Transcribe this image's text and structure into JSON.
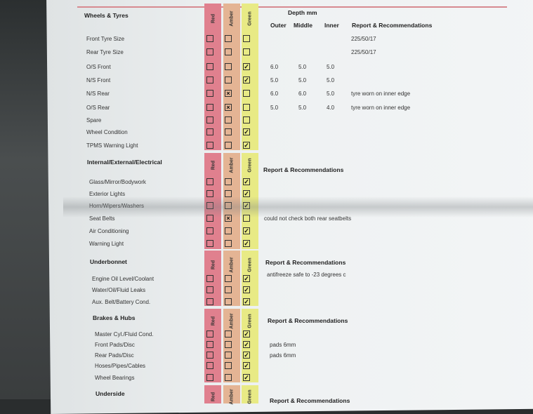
{
  "columns": {
    "red": "Red",
    "amber": "Amber",
    "green": "Green"
  },
  "depth_header": "Depth mm",
  "depth_columns": [
    "Outer",
    "Middle",
    "Inner"
  ],
  "report_header": "Report & Recommendations",
  "colors": {
    "red": "#e0808e",
    "amber": "#e4b494",
    "green": "#e8ea85",
    "rule": "#d78a90"
  },
  "sections": [
    {
      "title": "Wheels & Tyres",
      "items": [
        {
          "label": "Front Tyre Size",
          "status": "none",
          "report": "225/50/17"
        },
        {
          "label": "Rear Tyre Size",
          "status": "none",
          "report": "225/50/17"
        },
        {
          "label": "O/S Front",
          "status": "green",
          "mark": "check",
          "outer": "6.0",
          "middle": "5.0",
          "inner": "5.0"
        },
        {
          "label": "N/S Front",
          "status": "green",
          "mark": "check",
          "outer": "5.0",
          "middle": "5.0",
          "inner": "5.0"
        },
        {
          "label": "N/S Rear",
          "status": "amber",
          "mark": "cross",
          "outer": "6.0",
          "middle": "6.0",
          "inner": "5.0",
          "report": "tyre worn on inner edge"
        },
        {
          "label": "O/S Rear",
          "status": "amber",
          "mark": "cross",
          "outer": "5.0",
          "middle": "5.0",
          "inner": "4.0",
          "report": "tyre worn on inner edge"
        },
        {
          "label": "Spare",
          "status": "none"
        },
        {
          "label": "Wheel Condition",
          "status": "green",
          "mark": "check"
        },
        {
          "label": "TPMS Warning Light",
          "status": "green",
          "mark": "check"
        }
      ]
    },
    {
      "title": "Internal/External/Electrical",
      "items": [
        {
          "label": "Glass/Mirror/Bodywork",
          "status": "green",
          "mark": "check"
        },
        {
          "label": "Exterior Lights",
          "status": "green",
          "mark": "check"
        },
        {
          "label": "Horn/Wipers/Washers",
          "status": "green",
          "mark": "check"
        },
        {
          "label": "Seat Belts",
          "status": "amber",
          "mark": "cross",
          "report": "could not check both rear seatbelts"
        },
        {
          "label": "Air Conditioning",
          "status": "green",
          "mark": "check"
        },
        {
          "label": "Warning Light",
          "status": "green",
          "mark": "check"
        }
      ]
    },
    {
      "title": "Underbonnet",
      "items": [
        {
          "label": "Engine Oil Level/Coolant",
          "status": "green",
          "mark": "check",
          "report": "antifreeze safe to -23 degrees c"
        },
        {
          "label": "Water/Oil/Fluid Leaks",
          "status": "green",
          "mark": "check"
        },
        {
          "label": "Aux. Belt/Battery Cond.",
          "status": "green",
          "mark": "check"
        }
      ]
    },
    {
      "title": "Brakes & Hubs",
      "items": [
        {
          "label": "Master Cyl./Fluid Cond.",
          "status": "green",
          "mark": "check"
        },
        {
          "label": "Front Pads/Disc",
          "status": "green",
          "mark": "check",
          "report": "pads 6mm"
        },
        {
          "label": "Rear Pads/Disc",
          "status": "green",
          "mark": "check",
          "report": "pads 6mm"
        },
        {
          "label": "Hoses/Pipes/Cables",
          "status": "green",
          "mark": "check"
        },
        {
          "label": "Wheel Bearings",
          "status": "green",
          "mark": "check"
        }
      ]
    },
    {
      "title": "Underside",
      "items": []
    }
  ]
}
